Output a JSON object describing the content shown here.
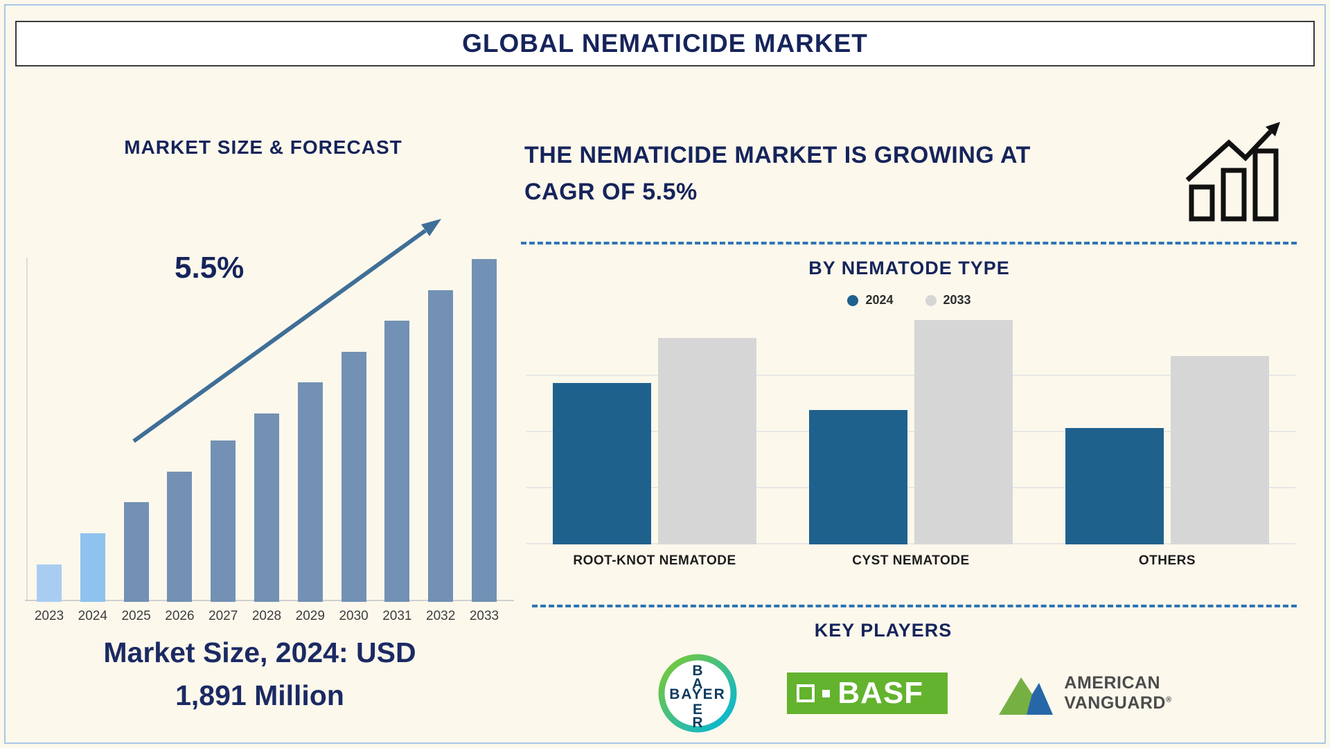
{
  "header": {
    "title": "GLOBAL NEMATICIDE MARKET"
  },
  "forecast_section": {
    "heading": "MARKET SIZE & FORECAST",
    "growth_label": "5.5%",
    "caption_line1": "Market Size, 2024: USD",
    "caption_line2": "1,891 Million"
  },
  "cagr_section": {
    "headline": "THE NEMATICIDE MARKET IS GROWING AT CAGR OF 5.5%"
  },
  "nematode_section": {
    "title": "BY NEMATODE TYPE",
    "legend": [
      {
        "label": "2024",
        "color": "#1f618d"
      },
      {
        "label": "2033",
        "color": "#d6d6d6"
      }
    ]
  },
  "key_players_section": {
    "title": "KEY PLAYERS",
    "players": [
      {
        "name": "Bayer",
        "logo_text": "BAYER"
      },
      {
        "name": "BASF",
        "logo_text": "BASF"
      },
      {
        "name": "American Vanguard",
        "logo_line1": "AMERICAN",
        "logo_line2": "VANGUARD",
        "reg_mark": "®"
      }
    ]
  },
  "colors": {
    "navy": "#16245b",
    "forecast_bar": "#7391b4",
    "forecast_bar_2023": "#a9cdf0",
    "forecast_bar_2024": "#8fc2ee",
    "arrow": "#3f6e98",
    "series_2024": "#1f618d",
    "series_2033": "#d6d6d6",
    "dashed_divider": "#2f74b5",
    "background": "#fcf8ec"
  },
  "chart_data": [
    {
      "type": "bar",
      "title": "MARKET SIZE & FORECAST",
      "xlabel": "",
      "ylabel": "",
      "categories": [
        "2023",
        "2024",
        "2025",
        "2026",
        "2027",
        "2028",
        "2029",
        "2030",
        "2031",
        "2032",
        "2033"
      ],
      "values": [
        11,
        20,
        29,
        38,
        47,
        55,
        64,
        73,
        82,
        91,
        100
      ],
      "units": "relative bar height percent (no value axis shown)",
      "known_value_2024_usd_million": 1891,
      "annotation": "5.5%",
      "colors": [
        "#a9cdf0",
        "#8fc2ee",
        "#7391b4",
        "#7391b4",
        "#7391b4",
        "#7391b4",
        "#7391b4",
        "#7391b4",
        "#7391b4",
        "#7391b4",
        "#7391b4"
      ],
      "grid": false,
      "legend_position": "none"
    },
    {
      "type": "bar",
      "title": "BY NEMATODE TYPE",
      "xlabel": "",
      "ylabel": "",
      "categories": [
        "ROOT-KNOT NEMATODE",
        "CYST NEMATODE",
        "OTHERS"
      ],
      "series": [
        {
          "name": "2024",
          "color": "#1f618d",
          "values": [
            72,
            60,
            52
          ]
        },
        {
          "name": "2033",
          "color": "#d6d6d6",
          "values": [
            92,
            100,
            84
          ]
        }
      ],
      "units": "relative bar height percent (no value axis shown)",
      "ylim": [
        0,
        100
      ],
      "grid": true,
      "legend_position": "top"
    }
  ]
}
